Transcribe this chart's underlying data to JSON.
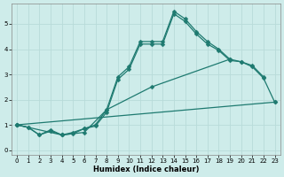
{
  "xlabel": "Humidex (Indice chaleur)",
  "xlim": [
    -0.5,
    23.5
  ],
  "ylim": [
    -0.2,
    5.8
  ],
  "bg_color": "#ceecea",
  "line_color": "#1e7a70",
  "grid_color": "#b8dbd9",
  "xticks": [
    0,
    1,
    2,
    3,
    4,
    5,
    6,
    7,
    8,
    9,
    10,
    11,
    12,
    13,
    14,
    15,
    16,
    17,
    18,
    19,
    20,
    21,
    22,
    23
  ],
  "yticks": [
    0,
    1,
    2,
    3,
    4,
    5
  ],
  "series1_x": [
    0,
    1,
    2,
    3,
    4,
    5,
    6,
    7,
    8,
    9,
    10,
    11,
    12,
    13,
    14,
    15,
    16,
    17,
    18,
    19,
    20,
    21,
    22
  ],
  "series1_y": [
    1.0,
    0.9,
    0.6,
    0.8,
    0.6,
    0.7,
    0.85,
    1.0,
    1.6,
    2.9,
    3.3,
    4.3,
    4.3,
    4.3,
    5.5,
    5.2,
    4.7,
    4.3,
    4.0,
    3.6,
    3.5,
    3.35,
    2.9
  ],
  "series2_x": [
    0,
    1,
    2,
    3,
    4,
    5,
    6,
    7,
    8,
    9,
    10,
    11,
    12,
    13,
    14,
    15,
    16,
    17,
    18,
    19,
    20,
    21,
    22,
    23
  ],
  "series2_y": [
    1.0,
    0.9,
    0.6,
    0.75,
    0.6,
    0.65,
    0.85,
    0.95,
    1.5,
    2.8,
    3.2,
    4.2,
    4.2,
    4.2,
    5.4,
    5.1,
    4.6,
    4.2,
    3.95,
    3.55,
    3.5,
    3.3,
    2.85,
    1.9
  ],
  "series3_x": [
    0,
    4,
    6,
    8,
    12,
    19
  ],
  "series3_y": [
    1.0,
    0.6,
    0.7,
    1.6,
    2.5,
    3.6
  ],
  "series4_x": [
    0,
    23
  ],
  "series4_y": [
    1.0,
    1.9
  ],
  "marker": "D",
  "markersize": 2.5,
  "linewidth": 0.9,
  "tick_fontsize": 5,
  "xlabel_fontsize": 6
}
